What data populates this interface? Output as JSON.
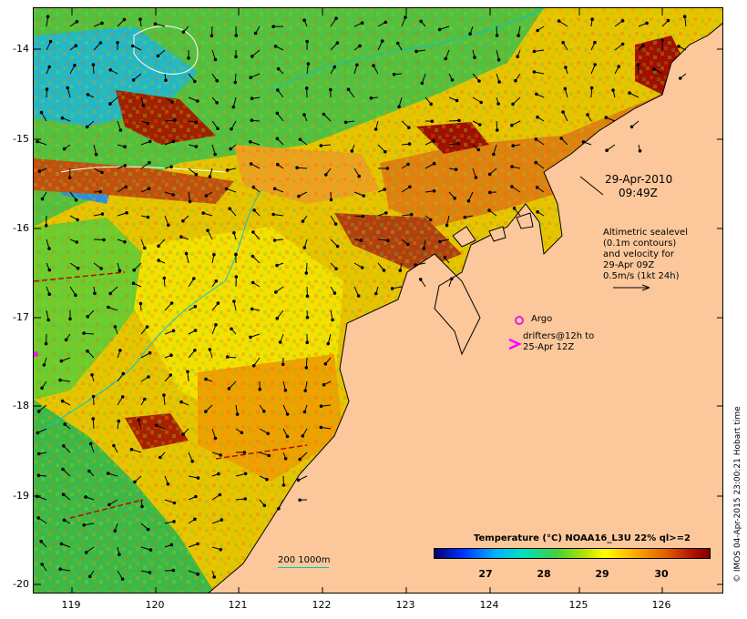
{
  "map": {
    "lat_ticks": [
      "-14",
      "-15",
      "-16",
      "-17",
      "-18",
      "-19",
      "-20"
    ],
    "lon_ticks": [
      "119",
      "120",
      "121",
      "122",
      "123",
      "124",
      "125",
      "126"
    ],
    "date": "29-Apr-2010",
    "time": "09:49Z",
    "sealevel_legend": [
      "Altimetric sealevel",
      "(0.1m contours)",
      "and velocity for",
      "29-Apr 09Z",
      "0.5m/s (1kt 24h)"
    ],
    "argo_label": "Argo",
    "drifter_legend": [
      "drifters@12h to",
      "25-Apr 12Z"
    ],
    "depth_contour_label": "200  1000m",
    "colorbar_title": "Temperature (°C) NOAA16_L3U 22% ql>=2",
    "colorbar_labels": [
      "27",
      "28",
      "29",
      "30"
    ],
    "credit": "© IMOS 04-Apr-2015 23:00:21 Hobart time",
    "colors": {
      "land": "#fcc89b",
      "argo": "#e020e0",
      "drifter": "#ff00ff",
      "contour": "#00c8c8"
    }
  }
}
